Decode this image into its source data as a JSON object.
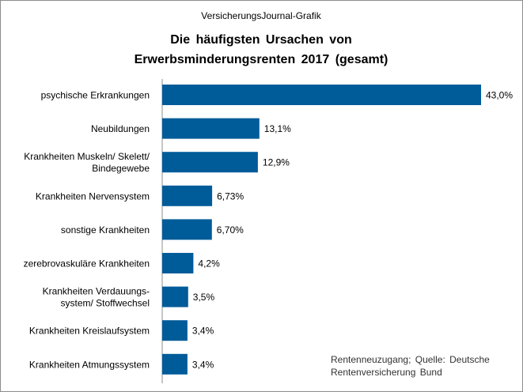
{
  "chart_data": {
    "type": "bar",
    "orientation": "horizontal",
    "header": "VersicherungsJournal-Grafik",
    "title_lines": [
      "Die häufigsten Ursachen von",
      "Erwerbsminderungsrenten 2017 (gesamt)"
    ],
    "categories": [
      [
        "psychische Erkrankungen"
      ],
      [
        "Neubildungen"
      ],
      [
        "Krankheiten Muskeln/ Skelett/",
        "Bindegewebe"
      ],
      [
        "Krankheiten Nervensystem"
      ],
      [
        "sonstige Krankheiten"
      ],
      [
        "zerebrovaskuläre Krankheiten"
      ],
      [
        "Krankheiten Verdauungs-",
        "system/ Stoffwechsel"
      ],
      [
        "Krankheiten Kreislaufsystem"
      ],
      [
        "Krankheiten Atmungssystem"
      ]
    ],
    "values": [
      43.0,
      13.1,
      12.9,
      6.73,
      6.7,
      4.2,
      3.5,
      3.4,
      3.4
    ],
    "value_labels": [
      "43,0%",
      "13,1%",
      "12,9%",
      "6,73%",
      "6,70%",
      "4,2%",
      "3,5%",
      "3,4%",
      "3,4%"
    ],
    "xlim": [
      0,
      43.0
    ],
    "unit": "%",
    "bar_color": "#005b99",
    "grid": false,
    "source": "Rentenneuzugang;  Quelle: Deutsche Rentenversicherung  Bund"
  }
}
